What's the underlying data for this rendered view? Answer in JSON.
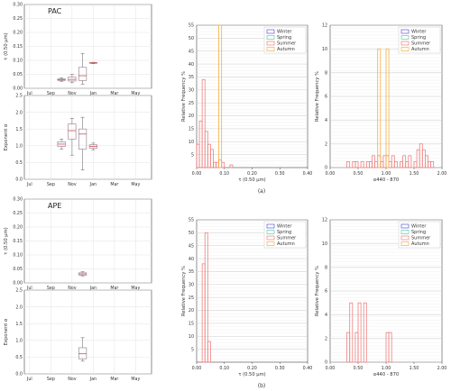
{
  "labels": {
    "a": "(a)",
    "b": "(b)"
  },
  "legend_labels": [
    "Winter",
    "Spring",
    "Summer",
    "Autumn"
  ],
  "season_colors": {
    "Winter": "#5b5bd6",
    "Spring": "#5fd0b0",
    "Summer": "#f08080",
    "Autumn": "#f5b041"
  },
  "box_color": "#a08a9a",
  "median_color": "#d05050",
  "chart_data": [
    {
      "type": "box",
      "site": "PAC",
      "ylabel": "τ (0.50 μm)",
      "categories": [
        "Jul",
        "Sep",
        "Nov",
        "Jan",
        "Mar",
        "May"
      ],
      "yticks": [
        "0.00",
        "0.05",
        "0.10",
        "0.15",
        "0.20",
        "0.25",
        "0.30"
      ],
      "ylim": [
        0,
        0.3
      ],
      "boxes": [
        {
          "x": 4.0,
          "min": 0.025,
          "q1": 0.028,
          "median": 0.031,
          "q3": 0.034,
          "max": 0.038
        },
        {
          "x": 5.0,
          "min": 0.02,
          "q1": 0.026,
          "median": 0.032,
          "q3": 0.04,
          "max": 0.05
        },
        {
          "x": 6.0,
          "min": 0.015,
          "q1": 0.028,
          "median": 0.045,
          "q3": 0.075,
          "max": 0.125
        },
        {
          "x": 7.0,
          "min": 0.088,
          "q1": 0.09,
          "median": 0.091,
          "q3": 0.092,
          "max": 0.093
        }
      ]
    },
    {
      "type": "box",
      "site": "",
      "ylabel": "Exponent α",
      "categories": [
        "Jul",
        "Sep",
        "Nov",
        "Jan",
        "Mar",
        "May"
      ],
      "yticks": [
        "0.0",
        "0.5",
        "1.0",
        "1.5",
        "2.0",
        "2.5"
      ],
      "ylim": [
        0,
        2.5
      ],
      "boxes": [
        {
          "x": 4.0,
          "min": 0.9,
          "q1": 0.98,
          "median": 1.05,
          "q3": 1.12,
          "max": 1.2
        },
        {
          "x": 5.0,
          "min": 0.72,
          "q1": 1.2,
          "median": 1.45,
          "q3": 1.65,
          "max": 1.82
        },
        {
          "x": 6.0,
          "min": 0.28,
          "q1": 0.9,
          "median": 1.35,
          "q3": 1.5,
          "max": 1.85
        },
        {
          "x": 7.0,
          "min": 0.88,
          "q1": 0.93,
          "median": 0.98,
          "q3": 1.03,
          "max": 1.08
        }
      ]
    },
    {
      "type": "box",
      "site": "APE",
      "ylabel": "τ (0.50 μm)",
      "categories": [
        "Jul",
        "Sep",
        "Nov",
        "Jan",
        "Mar",
        "May"
      ],
      "yticks": [
        "0.00",
        "0.05",
        "0.10",
        "0.15",
        "0.20",
        "0.25",
        "0.30"
      ],
      "ylim": [
        0,
        0.3
      ],
      "boxes": [
        {
          "x": 6.0,
          "min": 0.025,
          "q1": 0.028,
          "median": 0.032,
          "q3": 0.036,
          "max": 0.04
        }
      ]
    },
    {
      "type": "box",
      "site": "",
      "ylabel": "Exponent α",
      "categories": [
        "Jul",
        "Sep",
        "Nov",
        "Jan",
        "Mar",
        "May"
      ],
      "yticks": [
        "0.0",
        "0.5",
        "1.0",
        "1.5",
        "2.0",
        "2.5"
      ],
      "ylim": [
        0,
        2.5
      ],
      "boxes": [
        {
          "x": 6.0,
          "min": 0.38,
          "q1": 0.45,
          "median": 0.6,
          "q3": 0.78,
          "max": 1.08
        }
      ]
    },
    {
      "type": "histogram",
      "xlabel": "τ (0.50 μm)",
      "ylabel": "Relative Frequency %",
      "xlim": [
        0,
        0.4
      ],
      "xticks": [
        "0.00",
        "0.10",
        "0.20",
        "0.30",
        "0.40"
      ],
      "ylim": [
        0,
        55
      ],
      "yticks": [
        "5",
        "10",
        "15",
        "20",
        "25",
        "30",
        "35",
        "40",
        "45",
        "50",
        "55"
      ],
      "series": [
        {
          "name": "Summer",
          "bin_width": 0.01,
          "bins": [
            [
              0.0,
              9
            ],
            [
              0.01,
              18
            ],
            [
              0.02,
              34
            ],
            [
              0.03,
              14
            ],
            [
              0.04,
              9
            ],
            [
              0.05,
              7
            ],
            [
              0.06,
              2
            ],
            [
              0.07,
              2
            ],
            [
              0.08,
              3
            ],
            [
              0.09,
              2
            ],
            [
              0.1,
              0
            ],
            [
              0.12,
              1
            ]
          ]
        },
        {
          "name": "Autumn",
          "bin_width": 0.01,
          "bins": [
            [
              0.08,
              55
            ]
          ]
        }
      ]
    },
    {
      "type": "histogram",
      "xlabel": "α440 - 870",
      "ylabel": "Relative Frequency %",
      "xlim": [
        0,
        2
      ],
      "xticks": [
        "0.00",
        "0.50",
        "1.00",
        "1.50",
        "2.00"
      ],
      "ylim": [
        0,
        12
      ],
      "yticks": [
        "0",
        "2",
        "4",
        "6",
        "8",
        "10",
        "12"
      ],
      "series": [
        {
          "name": "Summer",
          "bin_width": 0.05,
          "bins": [
            [
              0.3,
              0.5
            ],
            [
              0.35,
              0
            ],
            [
              0.4,
              0.5
            ],
            [
              0.45,
              0.5
            ],
            [
              0.5,
              0
            ],
            [
              0.55,
              0.5
            ],
            [
              0.6,
              0
            ],
            [
              0.65,
              0.5
            ],
            [
              0.7,
              0.5
            ],
            [
              0.75,
              1
            ],
            [
              0.8,
              0.5
            ],
            [
              0.85,
              1
            ],
            [
              0.9,
              0.5
            ],
            [
              0.95,
              1
            ],
            [
              1.0,
              1
            ],
            [
              1.05,
              0.5
            ],
            [
              1.1,
              1
            ],
            [
              1.15,
              0.5
            ],
            [
              1.2,
              0
            ],
            [
              1.25,
              0.5
            ],
            [
              1.3,
              1
            ],
            [
              1.35,
              0.5
            ],
            [
              1.4,
              1
            ],
            [
              1.45,
              0
            ],
            [
              1.5,
              0.5
            ],
            [
              1.55,
              1.5
            ],
            [
              1.6,
              2
            ],
            [
              1.65,
              1.5
            ],
            [
              1.7,
              1
            ],
            [
              1.75,
              0.5
            ],
            [
              1.8,
              0.5
            ]
          ]
        },
        {
          "name": "Autumn",
          "bin_width": 0.05,
          "bins": [
            [
              0.85,
              10
            ],
            [
              0.9,
              0
            ],
            [
              0.95,
              0
            ],
            [
              1.0,
              10
            ]
          ]
        }
      ]
    },
    {
      "type": "histogram",
      "xlabel": "τ (0.50 μm)",
      "ylabel": "Relative Frequency %",
      "xlim": [
        0,
        0.4
      ],
      "xticks": [
        "0.00",
        "0.10",
        "0.20",
        "0.30",
        "0.40"
      ],
      "ylim": [
        0,
        55
      ],
      "yticks": [
        "5",
        "10",
        "15",
        "20",
        "25",
        "30",
        "35",
        "40",
        "45",
        "50",
        "55"
      ],
      "series": [
        {
          "name": "Summer",
          "bin_width": 0.01,
          "bins": [
            [
              0.02,
              38
            ],
            [
              0.03,
              50
            ],
            [
              0.04,
              8
            ]
          ]
        }
      ]
    },
    {
      "type": "histogram",
      "xlabel": "α440 - 870",
      "ylabel": "Relative Frequency %",
      "xlim": [
        0,
        2
      ],
      "xticks": [
        "0.00",
        "0.50",
        "1.00",
        "1.50",
        "2.00"
      ],
      "ylim": [
        0,
        12
      ],
      "yticks": [
        "0",
        "2",
        "4",
        "6",
        "8",
        "10",
        "12"
      ],
      "series": [
        {
          "name": "Summer",
          "bin_width": 0.05,
          "bins": [
            [
              0.3,
              2.5
            ],
            [
              0.35,
              5
            ],
            [
              0.4,
              0
            ],
            [
              0.45,
              2.5
            ],
            [
              0.5,
              5
            ],
            [
              0.55,
              0
            ],
            [
              0.6,
              5
            ],
            [
              0.65,
              0
            ],
            [
              0.7,
              0
            ],
            [
              0.75,
              0
            ],
            [
              0.8,
              0
            ],
            [
              0.85,
              0
            ],
            [
              0.9,
              0
            ],
            [
              0.95,
              0
            ],
            [
              1.0,
              2.5
            ],
            [
              1.05,
              2.5
            ]
          ]
        }
      ]
    }
  ]
}
